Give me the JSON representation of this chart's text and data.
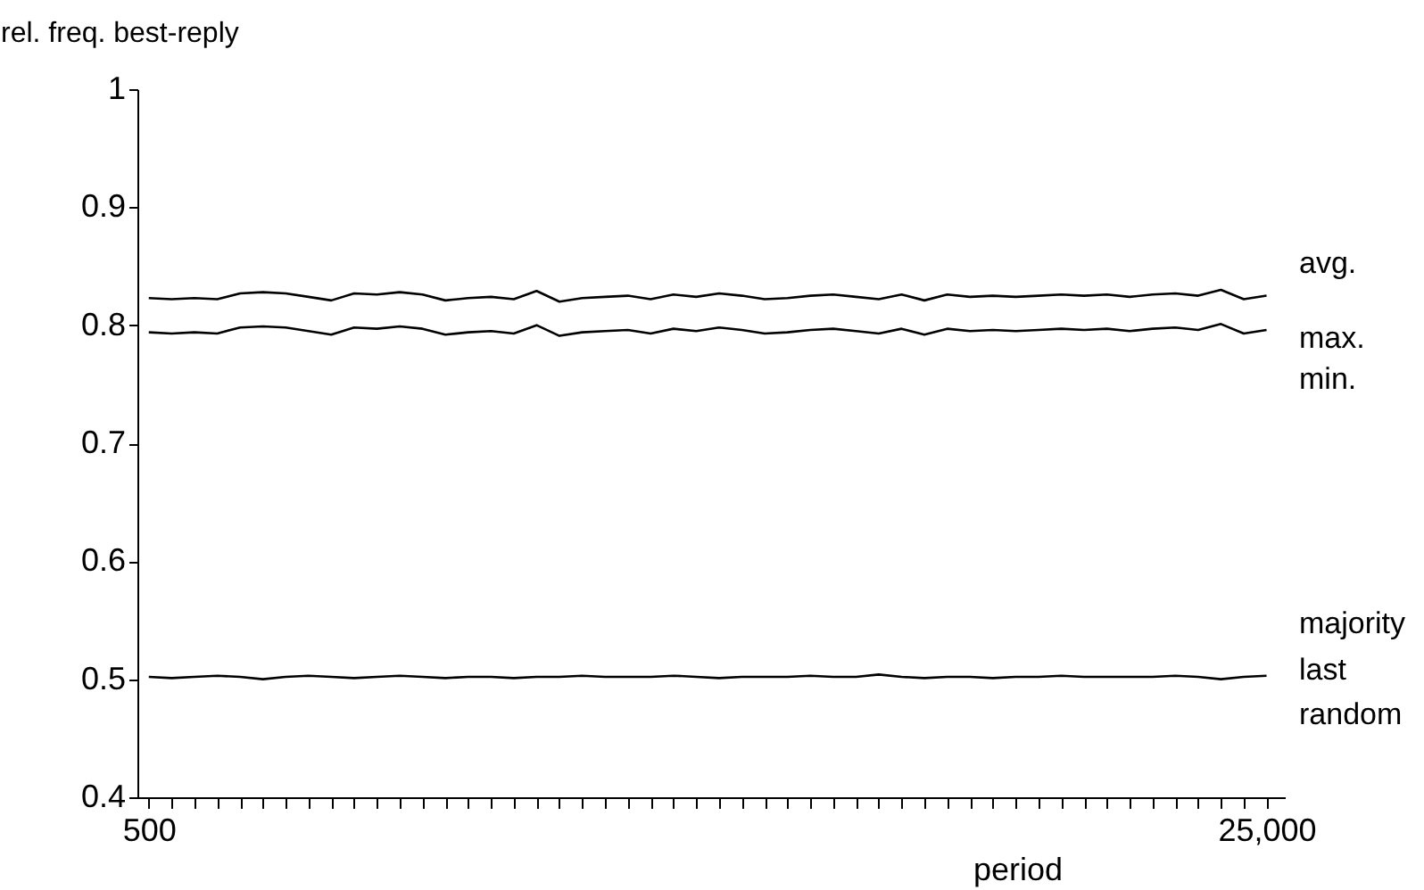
{
  "chart_data": {
    "type": "line",
    "xlabel": "period",
    "ylabel": "rel. freq. best-reply",
    "x": [
      500,
      1000,
      1500,
      2000,
      2500,
      3000,
      3500,
      4000,
      4500,
      5000,
      5500,
      6000,
      6500,
      7000,
      7500,
      8000,
      8500,
      9000,
      9500,
      10000,
      10500,
      11000,
      11500,
      12000,
      12500,
      13000,
      13500,
      14000,
      14500,
      15000,
      15500,
      16000,
      16500,
      17000,
      17500,
      18000,
      18500,
      19000,
      19500,
      20000,
      20500,
      21000,
      21500,
      22000,
      22500,
      23000,
      23500,
      24000,
      24500,
      25000
    ],
    "series": [
      {
        "color": "#000000",
        "values": [
          0.823,
          0.822,
          0.823,
          0.822,
          0.827,
          0.828,
          0.827,
          0.824,
          0.821,
          0.827,
          0.826,
          0.828,
          0.826,
          0.821,
          0.823,
          0.824,
          0.822,
          0.829,
          0.82,
          0.823,
          0.824,
          0.825,
          0.822,
          0.826,
          0.824,
          0.827,
          0.825,
          0.822,
          0.823,
          0.825,
          0.826,
          0.824,
          0.822,
          0.826,
          0.821,
          0.826,
          0.824,
          0.825,
          0.824,
          0.825,
          0.826,
          0.825,
          0.826,
          0.824,
          0.826,
          0.827,
          0.825,
          0.83,
          0.822,
          0.825
        ]
      },
      {
        "color": "#000000",
        "values": [
          0.794,
          0.793,
          0.794,
          0.793,
          0.798,
          0.799,
          0.798,
          0.795,
          0.792,
          0.798,
          0.797,
          0.799,
          0.797,
          0.792,
          0.794,
          0.795,
          0.793,
          0.8,
          0.791,
          0.794,
          0.795,
          0.796,
          0.793,
          0.797,
          0.795,
          0.798,
          0.796,
          0.793,
          0.794,
          0.796,
          0.797,
          0.795,
          0.793,
          0.797,
          0.792,
          0.797,
          0.795,
          0.796,
          0.795,
          0.796,
          0.797,
          0.796,
          0.797,
          0.795,
          0.797,
          0.798,
          0.796,
          0.801,
          0.793,
          0.796
        ]
      },
      {
        "color": "#000000",
        "values": [
          0.502,
          0.501,
          0.502,
          0.503,
          0.502,
          0.5,
          0.502,
          0.503,
          0.502,
          0.501,
          0.502,
          0.503,
          0.502,
          0.501,
          0.502,
          0.502,
          0.501,
          0.502,
          0.502,
          0.503,
          0.502,
          0.502,
          0.502,
          0.503,
          0.502,
          0.501,
          0.502,
          0.502,
          0.502,
          0.503,
          0.502,
          0.502,
          0.504,
          0.502,
          0.501,
          0.502,
          0.502,
          0.501,
          0.502,
          0.502,
          0.503,
          0.502,
          0.502,
          0.502,
          0.502,
          0.503,
          0.502,
          0.5,
          0.502,
          0.503
        ]
      }
    ],
    "annotations": [
      "avg.",
      "max.",
      "min.",
      "majority",
      "last",
      "random"
    ],
    "xlim": [
      250,
      25400
    ],
    "ylim": [
      0.4,
      1
    ],
    "xticks": [
      {
        "value": 500,
        "label": "500"
      },
      {
        "value": 1000,
        "label": null
      },
      {
        "value": 1500,
        "label": null
      },
      {
        "value": 2000,
        "label": null
      },
      {
        "value": 2500,
        "label": null
      },
      {
        "value": 3000,
        "label": null
      },
      {
        "value": 3500,
        "label": null
      },
      {
        "value": 4000,
        "label": null
      },
      {
        "value": 4500,
        "label": null
      },
      {
        "value": 5000,
        "label": null
      },
      {
        "value": 5500,
        "label": null
      },
      {
        "value": 6000,
        "label": null
      },
      {
        "value": 6500,
        "label": null
      },
      {
        "value": 7000,
        "label": null
      },
      {
        "value": 7500,
        "label": null
      },
      {
        "value": 8000,
        "label": null
      },
      {
        "value": 8500,
        "label": null
      },
      {
        "value": 9000,
        "label": null
      },
      {
        "value": 9500,
        "label": null
      },
      {
        "value": 10000,
        "label": null
      },
      {
        "value": 10500,
        "label": null
      },
      {
        "value": 11000,
        "label": null
      },
      {
        "value": 11500,
        "label": null
      },
      {
        "value": 12000,
        "label": null
      },
      {
        "value": 12500,
        "label": null
      },
      {
        "value": 13000,
        "label": null
      },
      {
        "value": 13500,
        "label": null
      },
      {
        "value": 14000,
        "label": null
      },
      {
        "value": 14500,
        "label": null
      },
      {
        "value": 15000,
        "label": null
      },
      {
        "value": 15500,
        "label": null
      },
      {
        "value": 16000,
        "label": null
      },
      {
        "value": 16500,
        "label": null
      },
      {
        "value": 17000,
        "label": null
      },
      {
        "value": 17500,
        "label": null
      },
      {
        "value": 18000,
        "label": null
      },
      {
        "value": 18500,
        "label": null
      },
      {
        "value": 19000,
        "label": null
      },
      {
        "value": 19500,
        "label": null
      },
      {
        "value": 20000,
        "label": null
      },
      {
        "value": 20500,
        "label": null
      },
      {
        "value": 21000,
        "label": null
      },
      {
        "value": 21500,
        "label": null
      },
      {
        "value": 22000,
        "label": null
      },
      {
        "value": 22500,
        "label": null
      },
      {
        "value": 23000,
        "label": null
      },
      {
        "value": 23500,
        "label": null
      },
      {
        "value": 24000,
        "label": null
      },
      {
        "value": 24500,
        "label": null
      },
      {
        "value": 25000,
        "label": "25,000"
      }
    ],
    "yticks": [
      0.4,
      0.5,
      0.6,
      0.7,
      0.8,
      0.9,
      1
    ],
    "grid": false,
    "marker": "none",
    "line_style": "solid"
  }
}
